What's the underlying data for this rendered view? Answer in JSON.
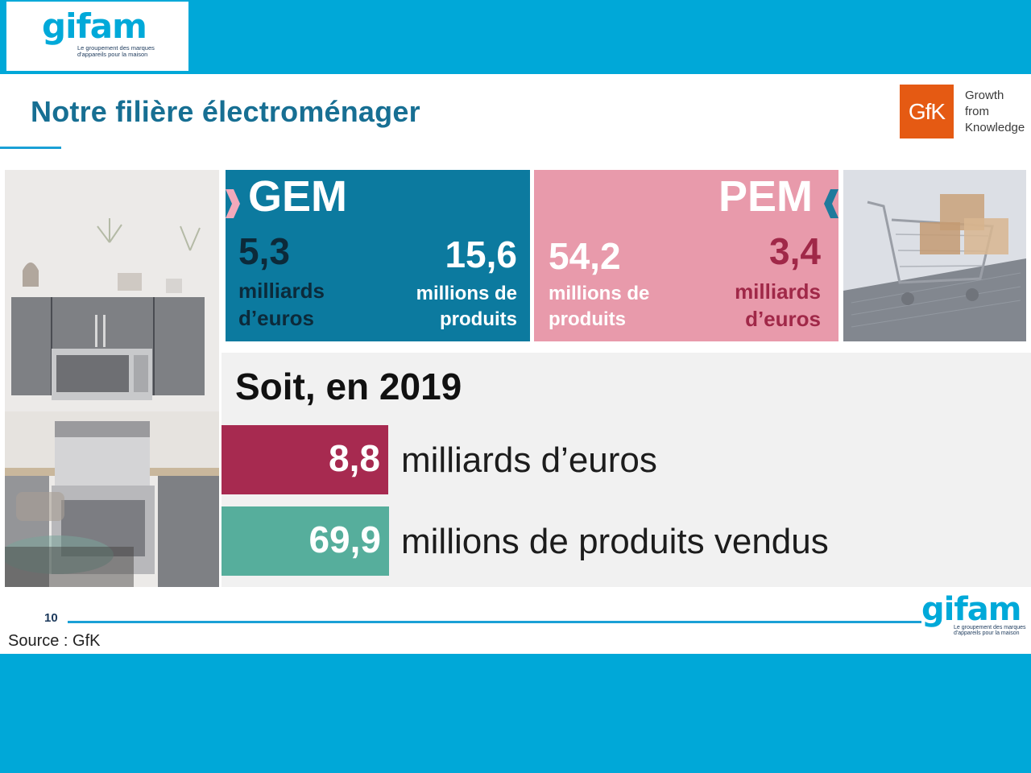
{
  "logo": {
    "word": "gifam",
    "tagline_1": "Le groupement des marques",
    "tagline_2": "d'appareils pour la maison"
  },
  "title": "Notre filière électroménager",
  "gfk": {
    "logo_text": "GfK",
    "slogan_1": "Growth",
    "slogan_2": "from",
    "slogan_3": "Knowledge"
  },
  "gem": {
    "heading": "GEM",
    "value_left": "5,3",
    "unit_left_1": "milliards",
    "unit_left_2": "d’euros",
    "value_right": "15,6",
    "unit_right_1": "millions de",
    "unit_right_2": "produits",
    "color": "#0c7a9f"
  },
  "pem": {
    "heading": "PEM",
    "value_left": "54,2",
    "unit_left_1": "millions de",
    "unit_left_2": "produits",
    "value_right": "3,4",
    "unit_right_1": "milliards",
    "unit_right_2": "d’euros",
    "color": "#e89aab"
  },
  "summary": {
    "heading": "Soit, en 2019",
    "row1_value": "8,8",
    "row1_label": "milliards d’euros",
    "row1_color": "#a72a50",
    "row2_value": "69,9",
    "row2_label": "millions de produits vendus",
    "row2_color": "#56ae9c"
  },
  "footer": {
    "page_number": "10",
    "source": "Source : GfK"
  },
  "colors": {
    "outer_bg": "#00a8d8",
    "title_color": "#176f93",
    "accent_line": "#1aa0d6",
    "gfk_orange": "#e55a13",
    "pem_dark_text": "#a02848"
  }
}
